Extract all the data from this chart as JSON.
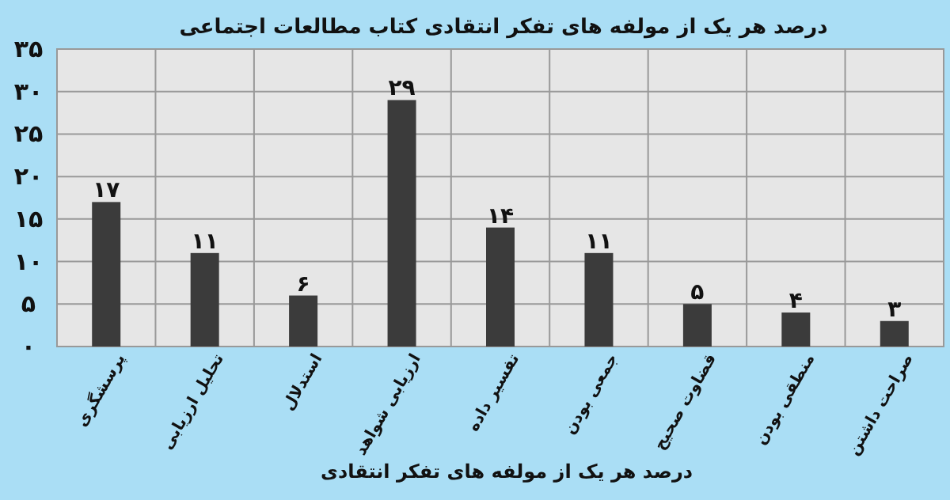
{
  "chart_data": {
    "type": "bar",
    "title": "درصد هر یک از مولفه های تفکر انتقادی کتاب مطالعات اجتماعی",
    "xlabel": "درصد هر یک از مولفه های تفکر انتقادی",
    "categories": [
      "پرسشگری",
      "تحلیل ارزیابی",
      "استدلال",
      "ارزیابی شواهد",
      "تفسیر داده",
      "جمعی بودن",
      "قضاوت صحیح",
      "منطقی بودن",
      "صراحت داشتن"
    ],
    "values": [
      17,
      11,
      6,
      29,
      14,
      11,
      5,
      4,
      3
    ],
    "value_labels": [
      "۱۷",
      "۱۱",
      "۶",
      "۲۹",
      "۱۴",
      "۱۱",
      "۵",
      "۴",
      "۳"
    ],
    "color": "#3b3b3b",
    "ylim": [
      0,
      35
    ],
    "yticks": [
      {
        "value": 0,
        "label": "۰"
      },
      {
        "value": 5,
        "label": "۵"
      },
      {
        "value": 10,
        "label": "۱۰"
      },
      {
        "value": 15,
        "label": "۱۵"
      },
      {
        "value": 20,
        "label": "۲۰"
      },
      {
        "value": 25,
        "label": "۲۵"
      },
      {
        "value": 30,
        "label": "۳۰"
      },
      {
        "value": 35,
        "label": "۳۵"
      }
    ],
    "grid": true
  }
}
